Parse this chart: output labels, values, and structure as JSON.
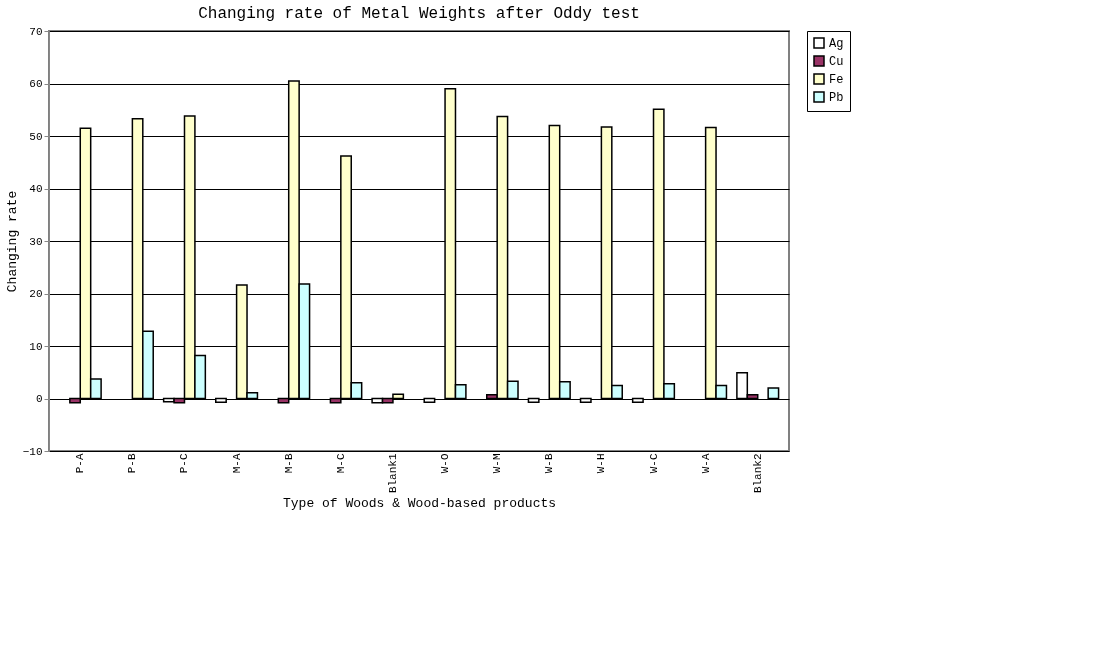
{
  "chart_data": {
    "type": "bar",
    "title": "Changing rate of Metal Weights after Oddy test",
    "xlabel": "Type of Woods & Wood-based products",
    "ylabel": "Changing rate",
    "categories": [
      "P-A",
      "P-B",
      "P-C",
      "M-A",
      "M-B",
      "M-C",
      "Blank1",
      "W-O",
      "W-M",
      "W-B",
      "W-H",
      "W-C",
      "W-A",
      "Blank2"
    ],
    "series": [
      {
        "name": "Ag",
        "color": "#ffffff",
        "values": [
          null,
          null,
          -0.6,
          -0.7,
          null,
          null,
          -0.8,
          -0.7,
          null,
          -0.7,
          -0.7,
          -0.7,
          null,
          4.9
        ]
      },
      {
        "name": "Cu",
        "color": "#993366",
        "values": [
          -0.8,
          null,
          -0.8,
          null,
          -0.8,
          -0.8,
          -0.8,
          null,
          0.7,
          null,
          null,
          null,
          null,
          0.7
        ]
      },
      {
        "name": "Fe",
        "color": "#ffffcc",
        "values": [
          51.5,
          53.3,
          53.8,
          21.6,
          60.5,
          46.2,
          0.8,
          59.0,
          53.7,
          52.0,
          51.7,
          55.1,
          51.6,
          null
        ]
      },
      {
        "name": "Pb",
        "color": "#ccffff",
        "values": [
          3.7,
          12.8,
          8.2,
          1.1,
          21.8,
          3.0,
          null,
          2.6,
          3.3,
          3.2,
          2.5,
          2.8,
          2.5,
          2.0
        ]
      }
    ],
    "ylim": [
      -10,
      70
    ],
    "yticks": [
      -10,
      0,
      10,
      20,
      30,
      40,
      50,
      60,
      70
    ],
    "grid": "y",
    "legend": "right"
  }
}
